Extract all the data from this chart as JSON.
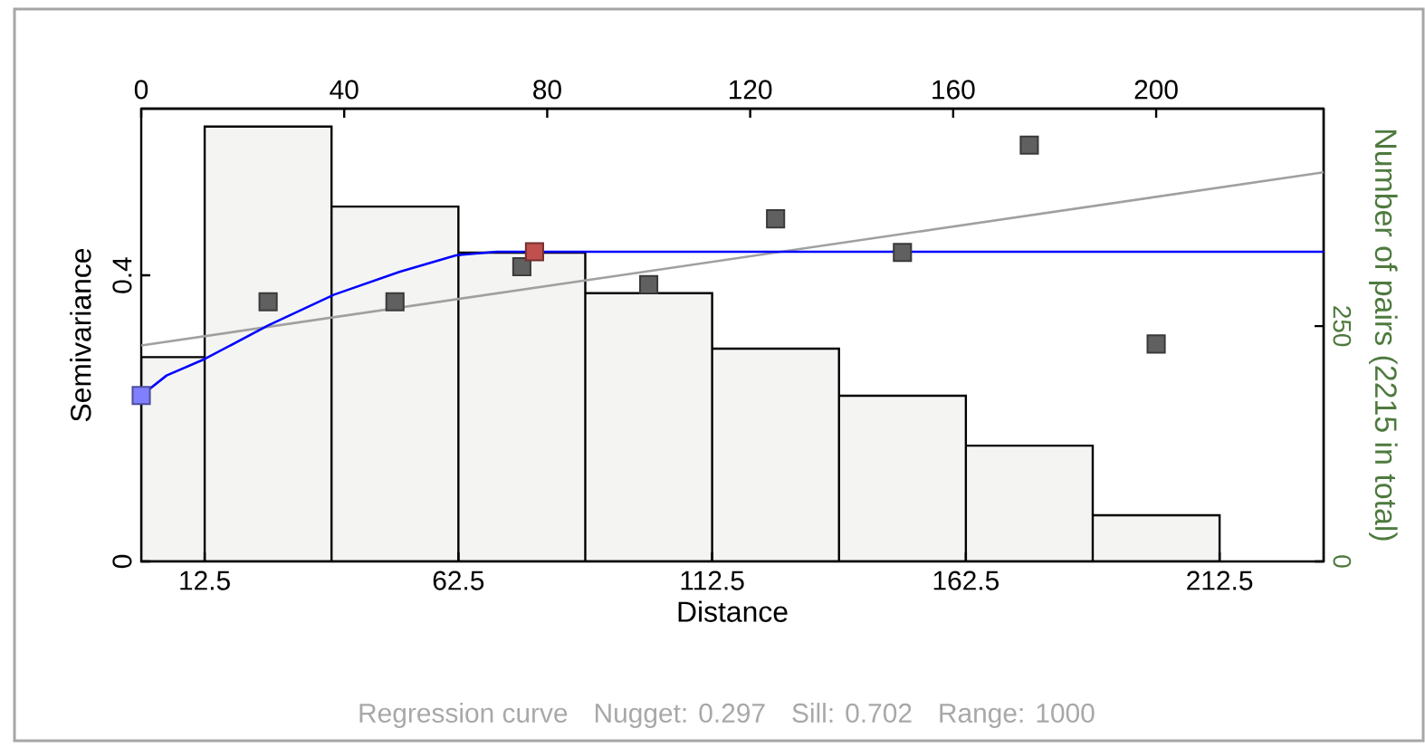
{
  "chart_data": {
    "type": "histogram",
    "xlabel": "Distance",
    "ylabel": "Semivariance",
    "y2label": "Number of pairs (2215 in total)",
    "annotations": [
      "Regression curve",
      "Nugget: 0.297",
      "Sill: 0.702",
      "Range: 1000"
    ],
    "xlim": [
      0,
      233
    ],
    "xticks": [
      12.5,
      62.5,
      112.5,
      162.5,
      212.5
    ],
    "x2lim": [
      0,
      233
    ],
    "x2ticks": [
      0,
      40,
      80,
      120,
      160,
      200
    ],
    "ylim": [
      0,
      0.633
    ],
    "yticks": [
      0,
      0.4
    ],
    "y2lim": [
      0,
      481
    ],
    "y2ticks": [
      0,
      250
    ],
    "grid": false,
    "series": [
      {
        "type": "histogram",
        "axis": "y2",
        "color": "#f4f5f3",
        "bins": [
          0,
          12.5,
          37.5,
          62.5,
          87.5,
          112.5,
          137.5,
          162.5,
          187.5,
          212.5
        ],
        "values": [
          217,
          462,
          377,
          328,
          285,
          226,
          176,
          123,
          49
        ]
      },
      {
        "type": "line",
        "color": "#a0a0a0",
        "x": [
          0,
          233
        ],
        "values": [
          0.302,
          0.544
        ]
      },
      {
        "type": "line",
        "color": "#0000ff",
        "x": [
          0,
          5,
          12.5,
          25,
          38,
          51,
          62,
          70,
          233
        ],
        "values": [
          0.232,
          0.26,
          0.283,
          0.33,
          0.373,
          0.405,
          0.428,
          0.433,
          0.433
        ]
      },
      {
        "type": "scatter",
        "marker": "square",
        "color": "#606060",
        "x": [
          25,
          50,
          75,
          100,
          125,
          150,
          175,
          200
        ],
        "values": [
          0.363,
          0.363,
          0.412,
          0.387,
          0.479,
          0.432,
          0.582,
          0.304
        ]
      },
      {
        "type": "scatter",
        "marker": "square",
        "color": "#8080ff",
        "x": [
          0
        ],
        "values": [
          0.232
        ]
      },
      {
        "type": "scatter",
        "marker": "square",
        "color": "#c0504d",
        "x": [
          77.5
        ],
        "values": [
          0.433
        ]
      }
    ]
  }
}
